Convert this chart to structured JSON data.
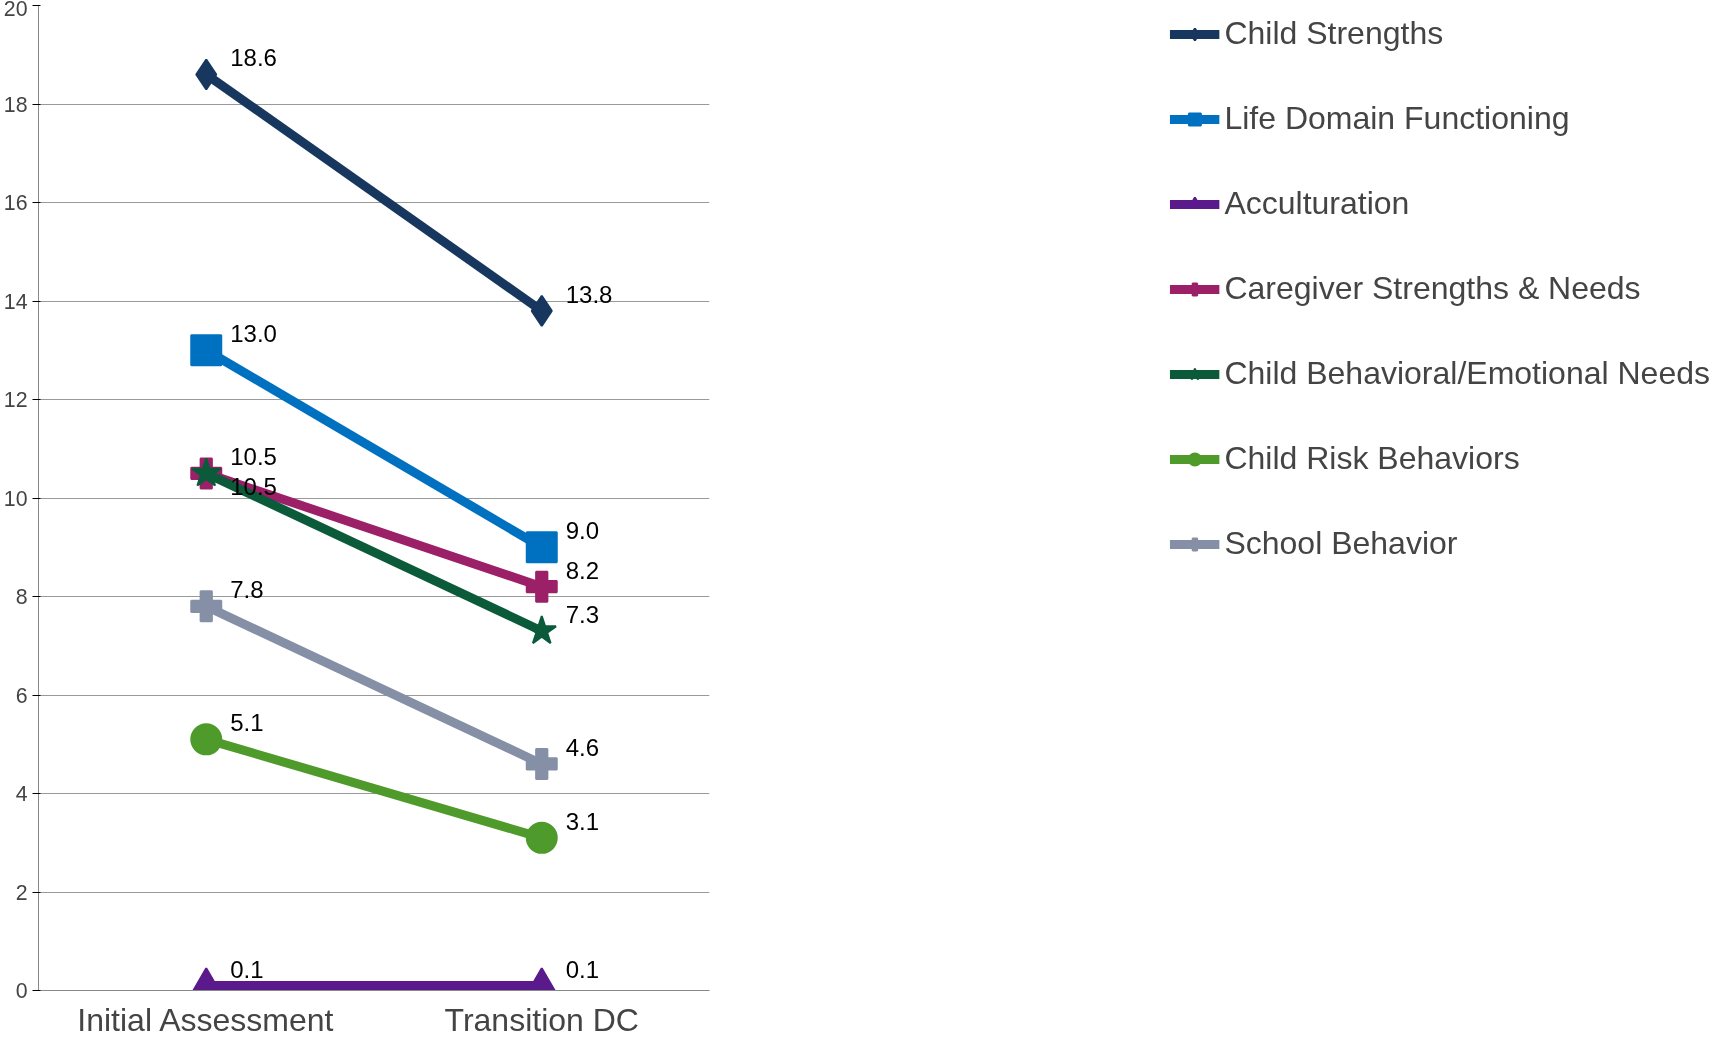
{
  "chart_data": {
    "type": "line",
    "categories": [
      "Initial Assessment",
      "Transition DC"
    ],
    "ylim": [
      0,
      20
    ],
    "yticks": [
      0,
      2,
      4,
      6,
      8,
      10,
      12,
      14,
      16,
      18,
      20
    ],
    "grid": "y",
    "legend": "right",
    "line_style": "solid",
    "series": [
      {
        "name": "Child Strengths",
        "color": "#17375e",
        "marker": "diamond",
        "values": [
          18.6,
          13.8
        ],
        "value_labels": [
          "18.6",
          "13.8"
        ]
      },
      {
        "name": "Life Domain Functioning",
        "color": "#0070c0",
        "marker": "square",
        "values": [
          13.0,
          9.0
        ],
        "value_labels": [
          "13.0",
          "9.0"
        ]
      },
      {
        "name": "Acculturation",
        "color": "#5b1a8c",
        "marker": "triangle",
        "values": [
          0.1,
          0.1
        ],
        "value_labels": [
          "0.1",
          "0.1"
        ]
      },
      {
        "name": "Caregiver Strengths & Needs",
        "color": "#9b2068",
        "marker": "cross",
        "values": [
          10.5,
          8.2
        ],
        "value_labels": [
          "10.5",
          "8.2"
        ]
      },
      {
        "name": "Child Behavioral/Emotional Needs",
        "color": "#0b5a3a",
        "marker": "star",
        "values": [
          10.5,
          7.3
        ],
        "value_labels": [
          "10.5",
          "7.3"
        ]
      },
      {
        "name": "Child Risk Behaviors",
        "color": "#4e9a2a",
        "marker": "circle",
        "values": [
          5.1,
          3.1
        ],
        "value_labels": [
          "5.1",
          "3.1"
        ]
      },
      {
        "name": "School Behavior",
        "color": "#8590a6",
        "marker": "cross",
        "values": [
          7.8,
          4.6
        ],
        "value_labels": [
          "7.8",
          "4.6"
        ]
      }
    ]
  }
}
